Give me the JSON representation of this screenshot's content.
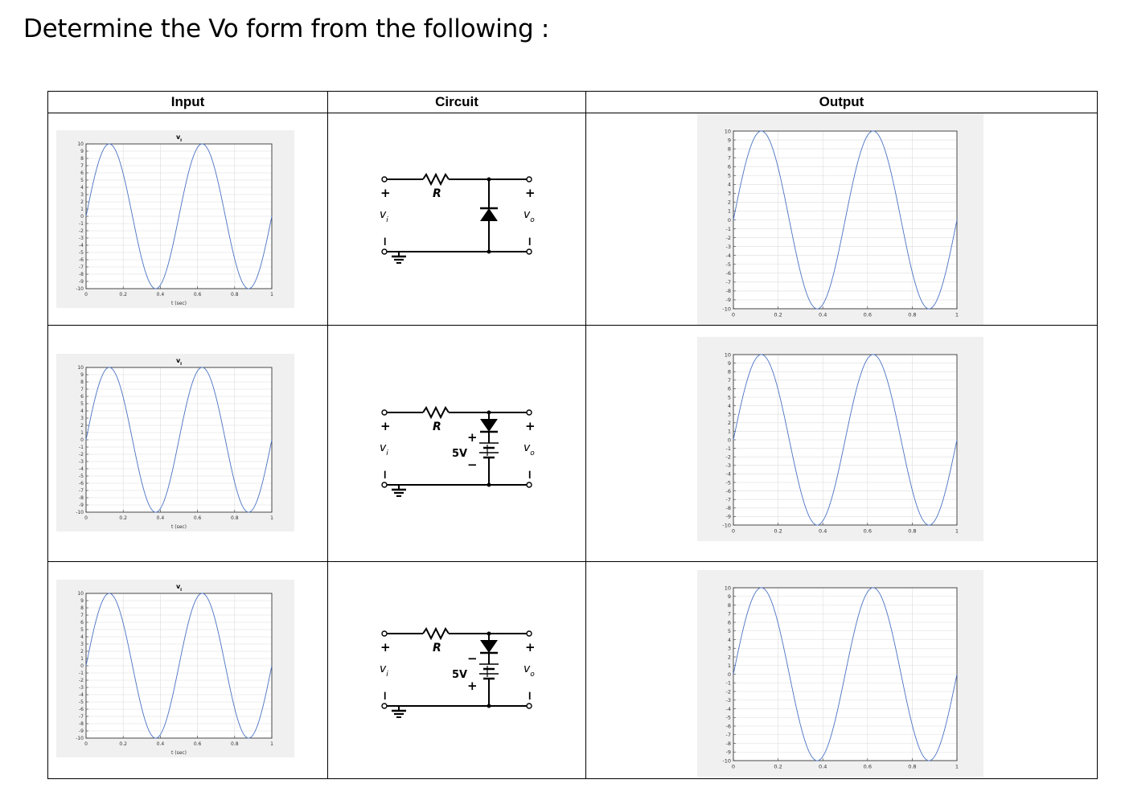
{
  "question": "Determine the Vo form from the following :",
  "headers": {
    "input": "Input",
    "circuit": "Circuit",
    "output": "Output"
  },
  "colors": {
    "wave": "#4a72c4",
    "grid": "#dcdcdc",
    "panel": "#f0f0f0"
  },
  "rows": [
    {
      "input": {
        "chart_data": {
          "type": "line",
          "title": "v_i",
          "xlabel": "t (sec)",
          "ylabel": "",
          "xlim": [
            0,
            1
          ],
          "ylim": [
            -10,
            10
          ],
          "xticks": [
            "0",
            "0.2",
            "0.4",
            "0.6",
            "0.8",
            "1"
          ],
          "yticks": [
            "10",
            "9",
            "8",
            "7",
            "6",
            "5",
            "4",
            "3",
            "2",
            "1",
            "0",
            "-1",
            "-2",
            "-3",
            "-4",
            "-5",
            "-6",
            "-7",
            "-8",
            "-9",
            "-10"
          ],
          "grid": true,
          "series": [
            {
              "amplitude": 10,
              "frequency_hz": 2,
              "phase": "sine",
              "x_range": [
                0,
                1
              ]
            }
          ]
        }
      },
      "circuit": {
        "resistor": "R",
        "input_label": "v_i",
        "output_label": "v_o",
        "plus": "+",
        "minus": "−",
        "diode": "shunt, cathode up",
        "battery": null
      },
      "output": {
        "chart_data": {
          "type": "line",
          "title": "",
          "xlabel": "",
          "ylabel": "",
          "xlim": [
            0,
            1
          ],
          "ylim": [
            -10,
            10
          ],
          "xticks": [
            "0",
            "0.2",
            "0.4",
            "0.6",
            "0.8",
            "1"
          ],
          "yticks": [
            "10",
            "9",
            "8",
            "7",
            "6",
            "5",
            "4",
            "3",
            "2",
            "1",
            "0",
            "-1",
            "-2",
            "-3",
            "-4",
            "-5",
            "-6",
            "-7",
            "-8",
            "-9",
            "-10"
          ],
          "grid": true,
          "series": [
            {
              "amplitude": 10,
              "frequency_hz": 2,
              "phase": "sine",
              "x_range": [
                0,
                1
              ]
            }
          ]
        }
      }
    },
    {
      "input": {
        "chart_data": {
          "type": "line",
          "title": "v_i",
          "xlabel": "t (sec)",
          "ylabel": "",
          "xlim": [
            0,
            1
          ],
          "ylim": [
            -10,
            10
          ],
          "xticks": [
            "0",
            "0.2",
            "0.4",
            "0.6",
            "0.8",
            "1"
          ],
          "yticks": [
            "10",
            "9",
            "8",
            "7",
            "6",
            "5",
            "4",
            "3",
            "2",
            "1",
            "0",
            "-1",
            "-2",
            "-3",
            "-4",
            "-5",
            "-6",
            "-7",
            "-8",
            "-9",
            "-10"
          ],
          "grid": true,
          "series": [
            {
              "amplitude": 10,
              "frequency_hz": 2,
              "phase": "sine",
              "x_range": [
                0,
                1
              ]
            }
          ]
        }
      },
      "circuit": {
        "resistor": "R",
        "input_label": "v_i",
        "output_label": "v_o",
        "plus": "+",
        "minus": "−",
        "diode": "shunt, cathode down, in series with battery",
        "battery": {
          "label": "5V",
          "top_sign": "+",
          "bottom_sign": "−"
        }
      },
      "output": {
        "chart_data": {
          "type": "line",
          "title": "",
          "xlabel": "",
          "ylabel": "",
          "xlim": [
            0,
            1
          ],
          "ylim": [
            -10,
            10
          ],
          "xticks": [
            "0",
            "0.2",
            "0.4",
            "0.6",
            "0.8",
            "1"
          ],
          "yticks": [
            "10",
            "9",
            "8",
            "7",
            "6",
            "5",
            "4",
            "3",
            "2",
            "1",
            "0",
            "-1",
            "-2",
            "-3",
            "-4",
            "-5",
            "-6",
            "-7",
            "-8",
            "-9",
            "-10"
          ],
          "grid": true,
          "series": [
            {
              "amplitude": 10,
              "frequency_hz": 2,
              "phase": "sine",
              "x_range": [
                0,
                1
              ]
            }
          ]
        }
      }
    },
    {
      "input": {
        "chart_data": {
          "type": "line",
          "title": "v_i",
          "xlabel": "t (sec)",
          "ylabel": "",
          "xlim": [
            0,
            1
          ],
          "ylim": [
            -10,
            10
          ],
          "xticks": [
            "0",
            "0.2",
            "0.4",
            "0.6",
            "0.8",
            "1"
          ],
          "yticks": [
            "10",
            "9",
            "8",
            "7",
            "6",
            "5",
            "4",
            "3",
            "2",
            "1",
            "0",
            "-1",
            "-2",
            "-3",
            "-4",
            "-5",
            "-6",
            "-7",
            "-8",
            "-9",
            "-10"
          ],
          "grid": true,
          "series": [
            {
              "amplitude": 10,
              "frequency_hz": 2,
              "phase": "sine",
              "x_range": [
                0,
                1
              ]
            }
          ]
        }
      },
      "circuit": {
        "resistor": "R",
        "input_label": "v_i",
        "output_label": "v_o",
        "plus": "+",
        "minus": "−",
        "diode": "shunt, cathode down, in series with battery",
        "battery": {
          "label": "5V",
          "top_sign": "−",
          "bottom_sign": "+"
        }
      },
      "output": {
        "chart_data": {
          "type": "line",
          "title": "",
          "xlabel": "",
          "ylabel": "",
          "xlim": [
            0,
            1
          ],
          "ylim": [
            -10,
            10
          ],
          "xticks": [
            "0",
            "0.2",
            "0.4",
            "0.6",
            "0.8",
            "1"
          ],
          "yticks": [
            "10",
            "9",
            "8",
            "7",
            "6",
            "5",
            "4",
            "3",
            "2",
            "1",
            "0",
            "-1",
            "-2",
            "-3",
            "-4",
            "-5",
            "-6",
            "-7",
            "-8",
            "-9",
            "-10"
          ],
          "grid": true,
          "series": [
            {
              "amplitude": 10,
              "frequency_hz": 2,
              "phase": "sine",
              "x_range": [
                0,
                1
              ]
            }
          ]
        }
      }
    }
  ]
}
